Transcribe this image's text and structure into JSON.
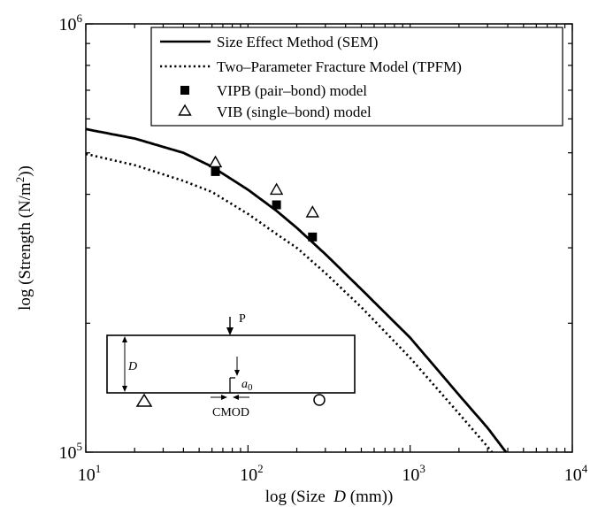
{
  "chart_data": {
    "type": "line",
    "xscale": "log",
    "yscale": "log",
    "xlim": [
      10,
      10000
    ],
    "ylim": [
      100000,
      1000000
    ],
    "x_ticks": [
      {
        "value": 10,
        "base": "10",
        "exp": "1"
      },
      {
        "value": 100,
        "base": "10",
        "exp": "2"
      },
      {
        "value": 1000,
        "base": "10",
        "exp": "3"
      },
      {
        "value": 10000,
        "base": "10",
        "exp": "4"
      }
    ],
    "y_ticks": [
      {
        "value": 100000,
        "base": "10",
        "exp": "5"
      },
      {
        "value": 1000000,
        "base": "10",
        "exp": "6"
      }
    ],
    "xlabel": {
      "before": "log (Size  ",
      "var": "D",
      "after": " (mm))"
    },
    "ylabel": {
      "before": "log (Strength (N/m",
      "sup": "2",
      "after": "))"
    },
    "grid": false,
    "legend_position": "top-right",
    "series": [
      {
        "name": "Size Effect Method (SEM)",
        "style": "solid",
        "color": "#000000",
        "x": [
          10,
          20,
          40,
          60,
          100,
          150,
          200,
          300,
          500,
          1000,
          2000,
          3000,
          3900
        ],
        "y": [
          568000,
          540000,
          500000,
          464000,
          410000,
          366000,
          334000,
          290000,
          240000,
          185000,
          136000,
          114000,
          100000
        ]
      },
      {
        "name": "Two–Parameter Fracture Model (TPFM)",
        "style": "dotted",
        "color": "#000000",
        "x": [
          10,
          20,
          40,
          60,
          100,
          150,
          200,
          300,
          500,
          1000,
          2000,
          3000,
          3200
        ],
        "y": [
          497000,
          468000,
          430000,
          405000,
          360000,
          323000,
          300000,
          262000,
          218000,
          166000,
          123000,
          103000,
          100000
        ]
      },
      {
        "name": "VIPB (pair–bond) model",
        "style": "marker",
        "marker": "filled-square",
        "color": "#000000",
        "x": [
          63,
          150,
          250
        ],
        "y": [
          452000,
          378000,
          318000
        ]
      },
      {
        "name": "VIB (single–bond) model",
        "style": "marker",
        "marker": "open-triangle",
        "color": "#000000",
        "x": [
          63,
          150,
          250
        ],
        "y": [
          475000,
          410000,
          363000
        ]
      }
    ],
    "inset": {
      "load_label": "P",
      "depth_label": "D",
      "notch_label_var": "a",
      "notch_label_sub": "0",
      "cmod_label": "CMOD"
    }
  }
}
